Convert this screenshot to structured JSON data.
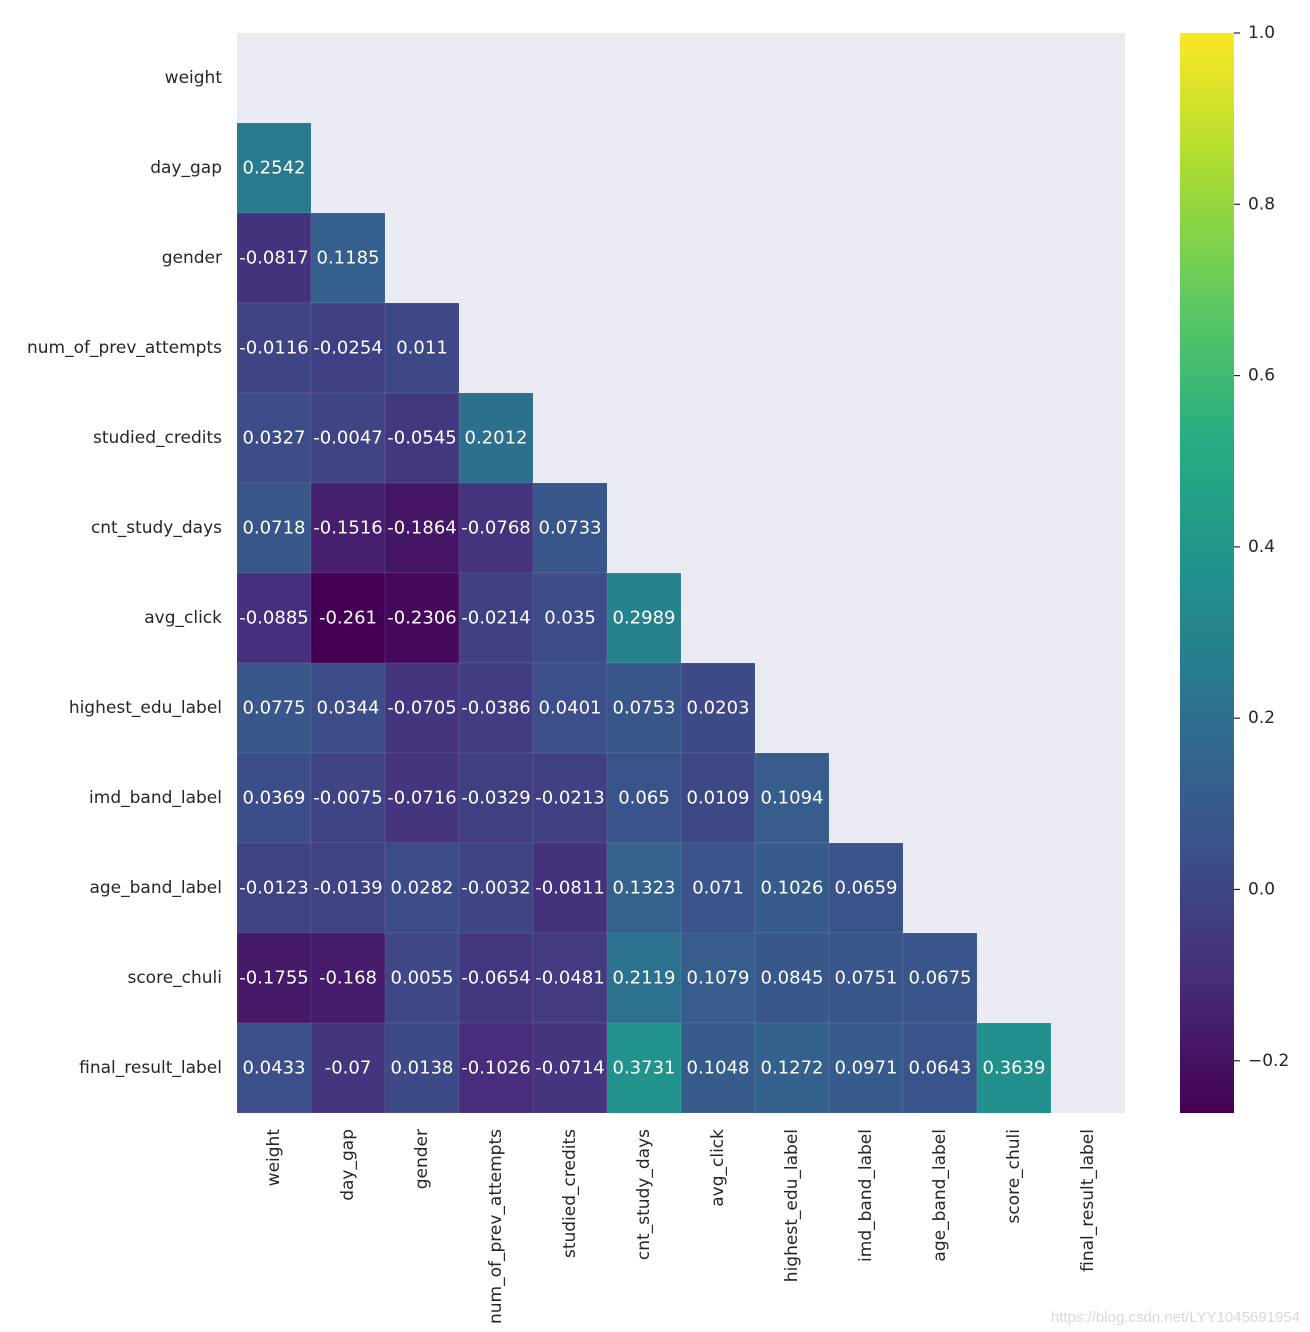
{
  "chart_data": {
    "type": "heatmap",
    "title": "",
    "xlabel": "",
    "ylabel": "",
    "mask": "upper-triangle-including-diagonal",
    "colormap": "viridis",
    "vmin": -0.261,
    "vmax": 1.0,
    "background_color": "#EAEAF2",
    "labels": [
      "weight",
      "day_gap",
      "gender",
      "num_of_prev_attempts",
      "studied_credits",
      "cnt_study_days",
      "avg_click",
      "highest_edu_label",
      "imd_band_label",
      "age_band_label",
      "score_chuli",
      "final_result_label"
    ],
    "rows": [
      {
        "label": "weight",
        "values": []
      },
      {
        "label": "day_gap",
        "values": [
          "0.2542"
        ]
      },
      {
        "label": "gender",
        "values": [
          "-0.0817",
          "0.1185"
        ]
      },
      {
        "label": "num_of_prev_attempts",
        "values": [
          "-0.0116",
          "-0.0254",
          "0.011"
        ]
      },
      {
        "label": "studied_credits",
        "values": [
          "0.0327",
          "-0.0047",
          "-0.0545",
          "0.2012"
        ]
      },
      {
        "label": "cnt_study_days",
        "values": [
          "0.0718",
          "-0.1516",
          "-0.1864",
          "-0.0768",
          "0.0733"
        ]
      },
      {
        "label": "avg_click",
        "values": [
          "-0.0885",
          "-0.261",
          "-0.2306",
          "-0.0214",
          "0.035",
          "0.2989"
        ]
      },
      {
        "label": "highest_edu_label",
        "values": [
          "0.0775",
          "0.0344",
          "-0.0705",
          "-0.0386",
          "0.0401",
          "0.0753",
          "0.0203"
        ]
      },
      {
        "label": "imd_band_label",
        "values": [
          "0.0369",
          "-0.0075",
          "-0.0716",
          "-0.0329",
          "-0.0213",
          "0.065",
          "0.0109",
          "0.1094"
        ]
      },
      {
        "label": "age_band_label",
        "values": [
          "-0.0123",
          "-0.0139",
          "0.0282",
          "-0.0032",
          "-0.0811",
          "0.1323",
          "0.071",
          "0.1026",
          "0.0659"
        ]
      },
      {
        "label": "score_chuli",
        "values": [
          "-0.1755",
          "-0.168",
          "0.0055",
          "-0.0654",
          "-0.0481",
          "0.2119",
          "0.1079",
          "0.0845",
          "0.0751",
          "0.0675"
        ]
      },
      {
        "label": "final_result_label",
        "values": [
          "0.0433",
          "-0.07",
          "0.0138",
          "-0.1026",
          "-0.0714",
          "0.3731",
          "0.1048",
          "0.1272",
          "0.0971",
          "0.0643",
          "0.3639"
        ]
      }
    ],
    "colorbar_ticks": [
      "−0.2",
      "0.0",
      "0.2",
      "0.4",
      "0.6",
      "0.8",
      "1.0"
    ],
    "colorbar_tick_values": [
      -0.2,
      0.0,
      0.2,
      0.4,
      0.6,
      0.8,
      1.0
    ]
  },
  "watermark": "https://blog.csdn.net/LYY1045691954"
}
